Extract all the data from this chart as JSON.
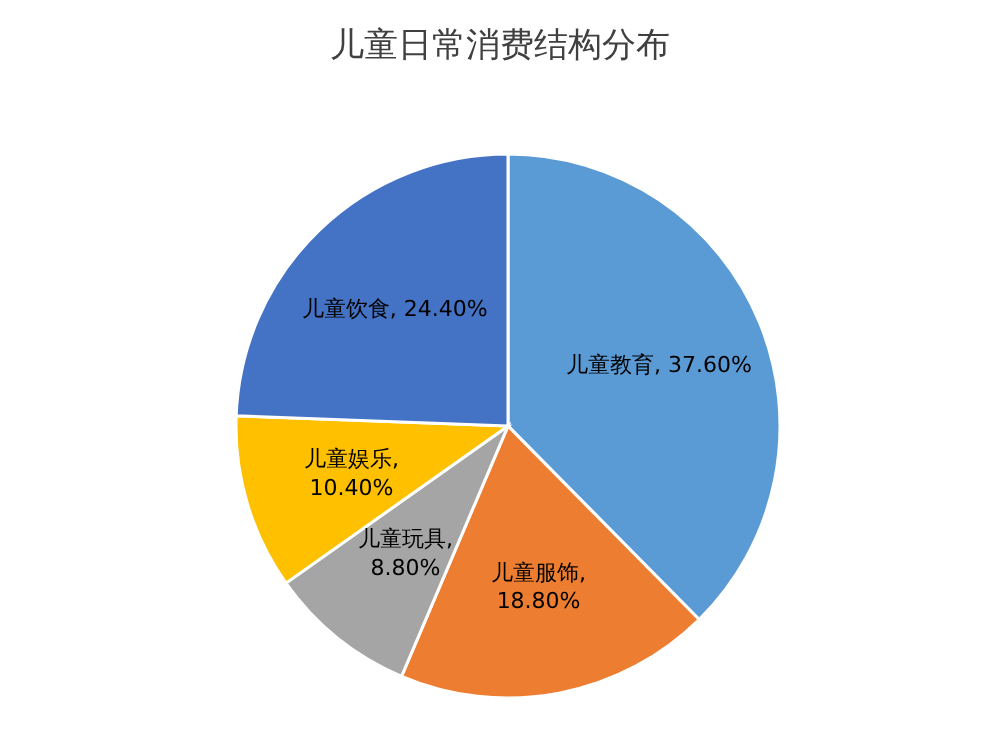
{
  "chart_data": {
    "type": "pie",
    "title": "儿童日常消费结构分布",
    "categories": [
      "儿童教育",
      "儿童服饰",
      "儿童玩具",
      "儿童娱乐",
      "儿童饮食"
    ],
    "values": [
      37.6,
      18.8,
      8.8,
      10.4,
      24.4
    ],
    "value_labels": [
      ", 37.60%",
      ", 18.80%",
      ", 8.80%",
      ", 10.40%",
      ", 24.40%"
    ],
    "colors": [
      "#5b9bd5",
      "#ed7d31",
      "#a5a5a5",
      "#ffc000",
      "#4472c4"
    ],
    "legend": false
  }
}
